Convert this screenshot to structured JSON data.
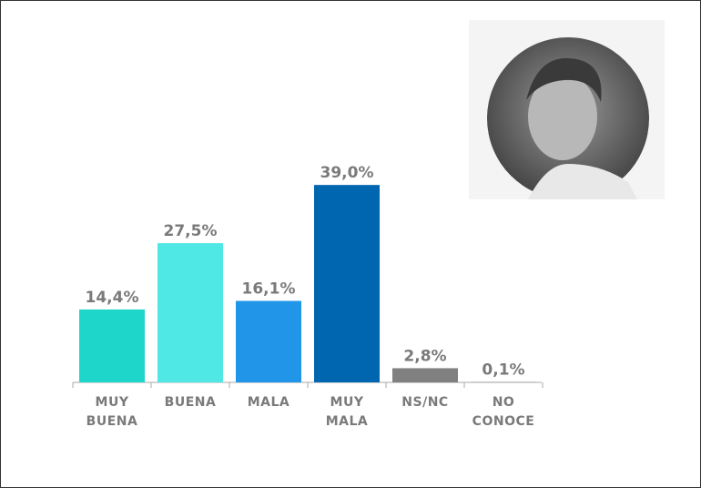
{
  "chart_data": {
    "type": "bar",
    "categories": [
      "MUY BUENA",
      "BUENA",
      "MALA",
      "MUY MALA",
      "NS/NC",
      "NO CONOCE"
    ],
    "values": [
      14.4,
      27.5,
      16.1,
      39.0,
      2.8,
      0.1
    ],
    "value_labels": [
      "14,4%",
      "27,5%",
      "16,1%",
      "39,0%",
      "2,8%",
      "0,1%"
    ],
    "colors": [
      "#1fd6cb",
      "#4fe8e4",
      "#2196e8",
      "#0066b0",
      "#808080",
      "#9a9a9a"
    ]
  }
}
